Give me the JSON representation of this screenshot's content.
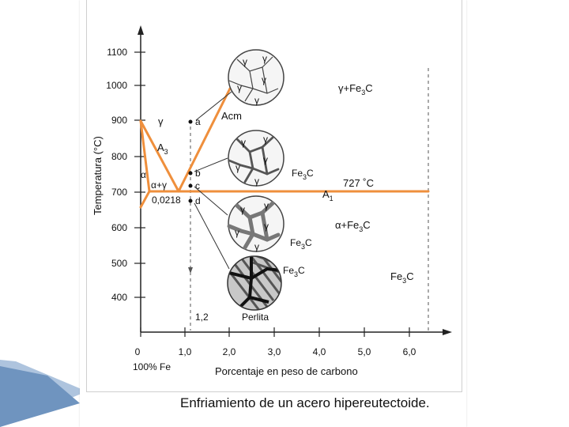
{
  "title": "Enfriamiento de un acero hipereutectoide.",
  "axes": {
    "ylabel": "Temperatura (°C)",
    "xlabel": "Porcentaje en peso de carbono",
    "x_origin_note": "100% Fe",
    "y_ticks": [
      "1100",
      "1000",
      "900",
      "800",
      "700",
      "600",
      "500",
      "400"
    ],
    "x_ticks": [
      "0",
      "1,0",
      "2,0",
      "3,0",
      "4,0",
      "5,0",
      "6,0"
    ]
  },
  "phase_labels": {
    "gamma": "γ",
    "gamma_fe3c": "γ+Fe",
    "gamma_fe3c_sub": "3",
    "gamma_fe3c_tail": "C",
    "alpha": "α",
    "alpha_gamma": "α+γ",
    "alpha_fe3c": "α+Fe",
    "alpha_fe3c_sub": "3",
    "alpha_fe3c_tail": "C",
    "fe3c_right": "Fe",
    "fe3c_right_sub": "3",
    "fe3c_right_tail": "C"
  },
  "line_labels": {
    "acm": "Acm",
    "a3": "A",
    "a3_sub": "3",
    "a1": "A",
    "a1_sub": "1",
    "eutectoid_temp": "727 ˚C",
    "eutectoid_comp": "0,0218",
    "composition_marker": "1,2"
  },
  "points": [
    "a",
    "b",
    "c",
    "d"
  ],
  "micrographs": {
    "m1_grains": [
      "γ",
      "γ",
      "γ",
      "γ",
      "γ"
    ],
    "m2_grains": [
      "γ",
      "γ",
      "γ",
      "γ",
      "γ"
    ],
    "m2_label": "Fe",
    "m2_label_sub": "3",
    "m2_label_tail": "C",
    "m3_grains": [
      "γ",
      "γ",
      "γ",
      "γ",
      "γ"
    ],
    "m3_label": "Fe",
    "m3_label_sub": "3",
    "m3_label_tail": "C",
    "m4_label": "Fe",
    "m4_label_sub": "3",
    "m4_label_tail": "C",
    "m4_caption": "Perlita"
  },
  "colors": {
    "phase_line": "#ef8f3c",
    "axis": "#222222",
    "boundary": "#555555",
    "accent_blue": "#7fa4c8"
  }
}
